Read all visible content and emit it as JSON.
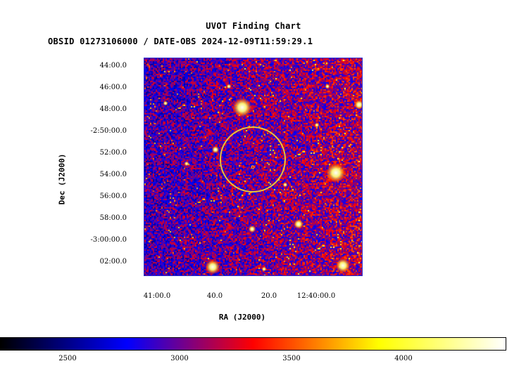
{
  "header": {
    "title": "UVOT Finding Chart",
    "subtitle": "OBSID 01273106000 / DATE-OBS 2024-12-09T11:59:29.1"
  },
  "axes": {
    "xlabel": "RA (J2000)",
    "ylabel": "Dec (J2000)",
    "x_ticks": [
      "41:00.0",
      "40.0",
      "20.0",
      "12:40:00.0"
    ],
    "y_ticks": [
      "44:00.0",
      "46:00.0",
      "48:00.0",
      "-2:50:00.0",
      "52:00.0",
      "54:00.0",
      "56:00.0",
      "58:00.0",
      "-3:00:00.0",
      "02:00.0"
    ]
  },
  "image": {
    "description_colormap": "heat",
    "circle_color": "#e8c53a",
    "frame_color": "#2a2ad0"
  },
  "colorbar": {
    "ticks": [
      "2500",
      "3000",
      "3500",
      "4000"
    ],
    "colors": [
      "#000000",
      "#0000ff",
      "#ff0000",
      "#ffff00",
      "#ffffff"
    ]
  }
}
